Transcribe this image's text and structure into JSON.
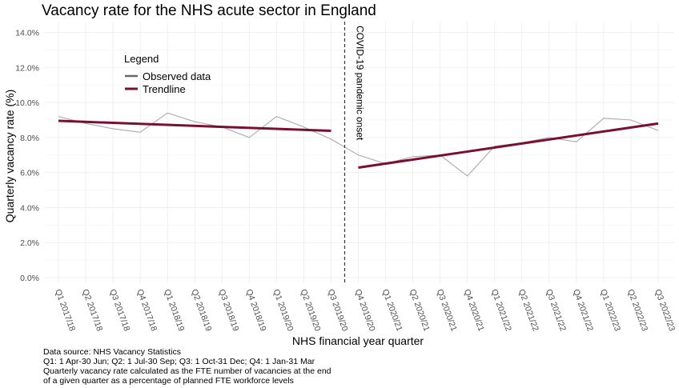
{
  "chart_data": {
    "type": "line",
    "title": "Vacancy rate for the NHS acute sector in England",
    "xlabel": "NHS financial year quarter",
    "ylabel": "Quarterly vacancy rate (%)",
    "ylim": [
      0,
      14
    ],
    "yticks": [
      "0.0%",
      "2.0%",
      "4.0%",
      "6.0%",
      "8.0%",
      "10.0%",
      "12.0%",
      "14.0%"
    ],
    "ytick_values": [
      0,
      2,
      4,
      6,
      8,
      10,
      12,
      14
    ],
    "categories": [
      "Q1 2017/18",
      "Q2 2017/18",
      "Q3 2017/18",
      "Q4 2017/18",
      "Q1 2018/19",
      "Q2 2018/19",
      "Q3 2018/19",
      "Q4 2018/19",
      "Q1 2019/20",
      "Q2 2019/20",
      "Q3 2019/20",
      "Q4 2019/20",
      "Q1 2020/21",
      "Q2 2020/21",
      "Q3 2020/21",
      "Q4 2020/21",
      "Q1 2021/22",
      "Q2 2021/22",
      "Q3 2021/22",
      "Q4 2021/22",
      "Q1 2022/23",
      "Q2 2022/23",
      "Q3 2022/23"
    ],
    "series": [
      {
        "name": "Observed data",
        "color": "#a9a9a9",
        "values": [
          9.2,
          8.8,
          8.5,
          8.3,
          9.4,
          8.9,
          8.6,
          8.0,
          9.2,
          8.6,
          7.9,
          7.0,
          6.5,
          6.9,
          7.0,
          5.8,
          7.5,
          7.7,
          8.0,
          7.75,
          9.1,
          9.0,
          8.4
        ]
      },
      {
        "name": "Trendline",
        "color": "#7a0f35",
        "segments": [
          {
            "x": [
              0,
              10
            ],
            "y": [
              8.95,
              8.38
            ]
          },
          {
            "x": [
              11,
              22
            ],
            "y": [
              6.28,
              8.8
            ]
          }
        ]
      }
    ],
    "vline": {
      "x": 10.5,
      "label": "COVID-19 pandemic onset",
      "style": "dashed"
    },
    "legend": {
      "title": "Legend",
      "placement": "top-left"
    },
    "grid": true,
    "notes": [
      "Data source: NHS Vacancy Statistics",
      "Q1: 1 Apr-30 Jun; Q2: 1 Jul-30 Sep; Q3: 1 Oct-31 Dec; Q4: 1 Jan-31 Mar",
      "Quarterly vacancy rate calculated as the FTE number of vacancies at the end",
      "of a given quarter as a percentage of planned FTE workforce levels"
    ]
  }
}
